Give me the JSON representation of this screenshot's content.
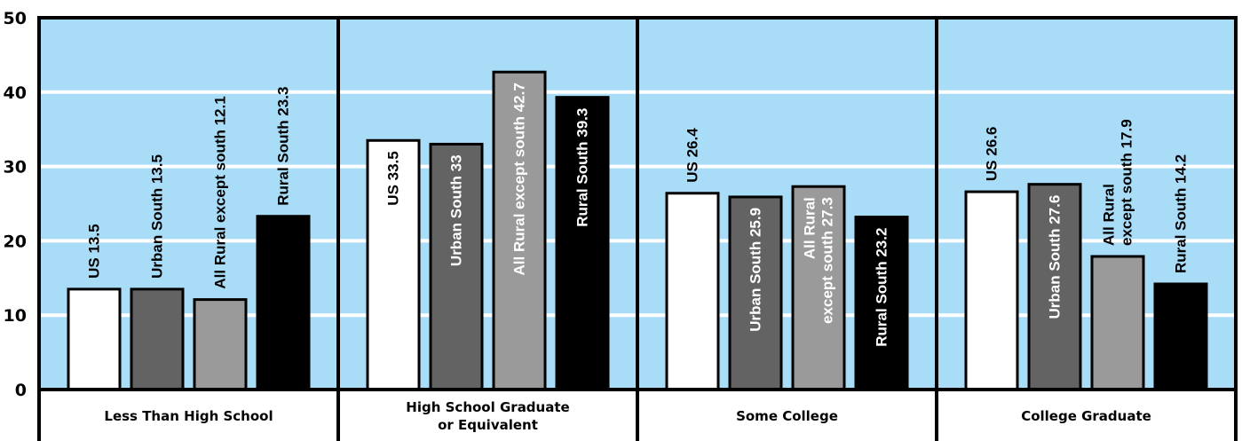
{
  "chart_data": {
    "type": "bar",
    "title": "",
    "xlabel": "",
    "ylabel": "",
    "ylim": [
      0,
      50
    ],
    "yticks": [
      0,
      10,
      20,
      30,
      40,
      50
    ],
    "grid": true,
    "categories": [
      [
        "Less Than High School"
      ],
      [
        "High School Graduate",
        "or Equivalent"
      ],
      [
        "Some College"
      ],
      [
        "College Graduate"
      ]
    ],
    "series": [
      {
        "name": "US",
        "color": "#ffffff",
        "text_color": "#000000",
        "values": [
          13.5,
          33.5,
          26.4,
          26.6
        ],
        "labels": [
          [
            "US 13.5"
          ],
          [
            "US 33.5"
          ],
          [
            "US 26.4"
          ],
          [
            "US 26.6"
          ]
        ]
      },
      {
        "name": "Urban South",
        "color": "#636363",
        "text_color": "#000000",
        "values": [
          13.5,
          33,
          25.9,
          27.6
        ],
        "labels": [
          [
            "Urban South 13.5"
          ],
          [
            "Urban South 33"
          ],
          [
            "Urban South 25.9"
          ],
          [
            "Urban South 27.6"
          ]
        ]
      },
      {
        "name": "All Rural except south",
        "color": "#9a9a9a",
        "text_color": "#000000",
        "values": [
          12.1,
          42.7,
          27.3,
          17.9
        ],
        "labels": [
          [
            "All Rural except south 12.1"
          ],
          [
            "All Rural except south 42.7"
          ],
          [
            "All Rural",
            "except south 27.3"
          ],
          [
            "All Rural",
            "except south 17.9"
          ]
        ]
      },
      {
        "name": "Rural South",
        "color": "#000000",
        "text_color": "#000000",
        "values": [
          23.3,
          39.3,
          23.2,
          14.2
        ],
        "labels": [
          [
            "Rural South 23.3"
          ],
          [
            "Rural South 39.3"
          ],
          [
            "Rural South 23.2"
          ],
          [
            "Rural South 14.2"
          ]
        ]
      }
    ],
    "inside_labels": [
      [
        false,
        false,
        false,
        false
      ],
      [
        true,
        true,
        true,
        true
      ],
      [
        false,
        true,
        true,
        true
      ],
      [
        false,
        true,
        false,
        false
      ]
    ],
    "colors": {
      "plot_background": "#a8dcf7",
      "gridline": "#ffffff"
    }
  }
}
